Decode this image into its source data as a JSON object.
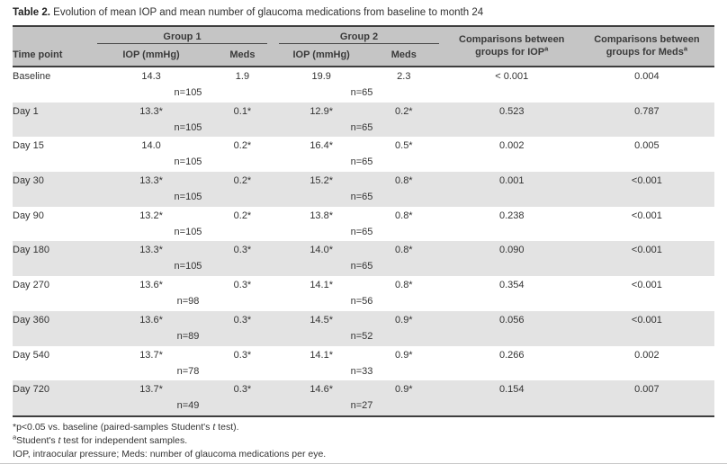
{
  "title": {
    "label": "Table 2.",
    "text": " Evolution of mean IOP and mean number of glaucoma medications from baseline to month 24"
  },
  "table": {
    "header": {
      "timepoint": "Time point",
      "group1": "Group 1",
      "group2": "Group 2",
      "iop": "IOP (mmHg)",
      "meds": "Meds",
      "comp_iop": {
        "line1": "Comparisons between",
        "line2": "groups for IOP",
        "sup": "a"
      },
      "comp_meds": {
        "line1": "Comparisons between",
        "line2": "groups for Meds",
        "sup": "a"
      }
    },
    "rows": [
      {
        "timepoint": "Baseline",
        "g1_iop": "14.3",
        "g1_meds": "1.9",
        "g1_n": "n=105",
        "g2_iop": "19.9",
        "g2_meds": "2.3",
        "g2_n": "n=65",
        "comp_iop": "< 0.001",
        "comp_meds": "0.004"
      },
      {
        "timepoint": "Day 1",
        "g1_iop": "13.3*",
        "g1_meds": "0.1*",
        "g1_n": "n=105",
        "g2_iop": "12.9*",
        "g2_meds": "0.2*",
        "g2_n": "n=65",
        "comp_iop": "0.523",
        "comp_meds": "0.787"
      },
      {
        "timepoint": "Day 15",
        "g1_iop": "14.0",
        "g1_meds": "0.2*",
        "g1_n": "n=105",
        "g2_iop": "16.4*",
        "g2_meds": "0.5*",
        "g2_n": "n=65",
        "comp_iop": "0.002",
        "comp_meds": "0.005"
      },
      {
        "timepoint": "Day 30",
        "g1_iop": "13.3*",
        "g1_meds": "0.2*",
        "g1_n": "n=105",
        "g2_iop": "15.2*",
        "g2_meds": "0.8*",
        "g2_n": "n=65",
        "comp_iop": "0.001",
        "comp_meds": "<0.001"
      },
      {
        "timepoint": "Day 90",
        "g1_iop": "13.2*",
        "g1_meds": "0.2*",
        "g1_n": "n=105",
        "g2_iop": "13.8*",
        "g2_meds": "0.8*",
        "g2_n": "n=65",
        "comp_iop": "0.238",
        "comp_meds": "<0.001"
      },
      {
        "timepoint": "Day 180",
        "g1_iop": "13.3*",
        "g1_meds": "0.3*",
        "g1_n": "n=105",
        "g2_iop": "14.0*",
        "g2_meds": "0.8*",
        "g2_n": "n=65",
        "comp_iop": "0.090",
        "comp_meds": "<0.001"
      },
      {
        "timepoint": "Day 270",
        "g1_iop": "13.6*",
        "g1_meds": "0.3*",
        "g1_n": "n=98",
        "g2_iop": "14.1*",
        "g2_meds": "0.8*",
        "g2_n": "n=56",
        "comp_iop": "0.354",
        "comp_meds": "<0.001"
      },
      {
        "timepoint": "Day 360",
        "g1_iop": "13.6*",
        "g1_meds": "0.3*",
        "g1_n": "n=89",
        "g2_iop": "14.5*",
        "g2_meds": "0.9*",
        "g2_n": "n=52",
        "comp_iop": "0.056",
        "comp_meds": "<0.001"
      },
      {
        "timepoint": "Day 540",
        "g1_iop": "13.7*",
        "g1_meds": "0.3*",
        "g1_n": "n=78",
        "g2_iop": "14.1*",
        "g2_meds": "0.9*",
        "g2_n": "n=33",
        "comp_iop": "0.266",
        "comp_meds": "0.002"
      },
      {
        "timepoint": "Day 720",
        "g1_iop": "13.7*",
        "g1_meds": "0.3*",
        "g1_n": "n=49",
        "g2_iop": "14.6*",
        "g2_meds": "0.9*",
        "g2_n": "n=27",
        "comp_iop": "0.154",
        "comp_meds": "0.007"
      }
    ]
  },
  "footnotes": [
    {
      "sup": "",
      "pre": "*p<0.05 vs. baseline (paired-samples Student's ",
      "italic": "t",
      "post": " test)."
    },
    {
      "sup": "a",
      "pre": "Student's ",
      "italic": "t",
      "post": " test for independent samples."
    },
    {
      "sup": "",
      "pre": "IOP, intraocular pressure; Meds: number of glaucoma medications per eye.",
      "italic": "",
      "post": ""
    }
  ],
  "colors": {
    "header_bg": "#c5c5c5",
    "row_alt_bg": "#e3e3e3",
    "rule": "#3e3e3e",
    "text": "#333333"
  }
}
